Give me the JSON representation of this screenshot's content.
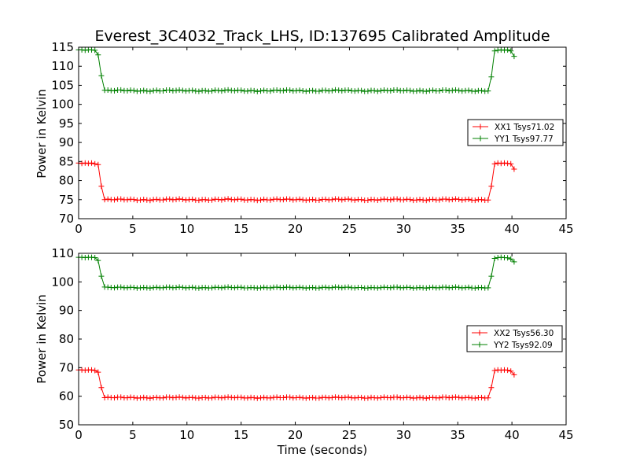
{
  "chart_data": [
    {
      "type": "line",
      "title": "Everest_3C4032_Track_LHS, ID:137695 Calibrated Amplitude",
      "xlabel": "",
      "ylabel": "Power in Kelvin",
      "xlim": [
        0,
        45
      ],
      "ylim": [
        70,
        115
      ],
      "xticks": [
        0,
        5,
        10,
        15,
        20,
        25,
        30,
        35,
        40,
        45
      ],
      "yticks": [
        70,
        75,
        80,
        85,
        90,
        95,
        100,
        105,
        110,
        115
      ],
      "grid": false,
      "legend_position": "right",
      "x": [
        0.0,
        0.3,
        0.6,
        0.9,
        1.2,
        1.5,
        1.8,
        2.1,
        2.4,
        38.1,
        38.4,
        38.7,
        39.0,
        39.3,
        39.6,
        39.9,
        40.2
      ],
      "series": [
        {
          "name": "XX1 Tsys71.02",
          "color": "#ff0000",
          "segments": [
            {
              "x": [
                0.0,
                0.3,
                0.6,
                0.9,
                1.2,
                1.5,
                1.8,
                2.1,
                2.4
              ],
              "y": [
                84.6,
                84.5,
                84.6,
                84.5,
                84.6,
                84.4,
                84.2,
                78.5,
                75.0
              ]
            },
            {
              "x_start": 2.4,
              "x_end": 37.8,
              "step": 0.3,
              "y": 75.0
            },
            {
              "x": [
                37.8,
                38.1,
                38.4,
                38.7,
                39.0,
                39.3,
                39.6,
                39.9,
                40.2
              ],
              "y": [
                75.2,
                78.5,
                84.4,
                84.6,
                84.5,
                84.6,
                84.5,
                84.4,
                83.0
              ]
            }
          ]
        },
        {
          "name": "YY1 Tsys97.77",
          "color": "#008000",
          "segments": [
            {
              "x": [
                0.0,
                0.3,
                0.6,
                0.9,
                1.2,
                1.5,
                1.8,
                2.1,
                2.4
              ],
              "y": [
                114.3,
                114.3,
                114.2,
                114.3,
                114.3,
                114.2,
                113.0,
                107.5,
                103.7
              ]
            },
            {
              "x_start": 2.4,
              "x_end": 37.8,
              "step": 0.3,
              "y": 103.6
            },
            {
              "x": [
                37.8,
                38.1,
                38.4,
                38.7,
                39.0,
                39.3,
                39.6,
                39.9,
                40.2
              ],
              "y": [
                104.0,
                107.2,
                114.0,
                114.2,
                114.3,
                114.2,
                114.3,
                114.0,
                112.6
              ]
            }
          ]
        }
      ]
    },
    {
      "type": "line",
      "title": "",
      "xlabel": "Time (seconds)",
      "ylabel": "Power in Kelvin",
      "xlim": [
        0,
        45
      ],
      "ylim": [
        50,
        110
      ],
      "xticks": [
        0,
        5,
        10,
        15,
        20,
        25,
        30,
        35,
        40,
        45
      ],
      "yticks": [
        50,
        60,
        70,
        80,
        90,
        100,
        110
      ],
      "grid": false,
      "legend_position": "right",
      "series": [
        {
          "name": "XX2 Tsys56.30",
          "color": "#ff0000",
          "segments": [
            {
              "x": [
                0.0,
                0.3,
                0.6,
                0.9,
                1.2,
                1.5,
                1.8,
                2.1,
                2.4
              ],
              "y": [
                69.2,
                69.2,
                69.1,
                69.2,
                69.2,
                69.0,
                68.4,
                63.0,
                59.5
              ]
            },
            {
              "x_start": 2.4,
              "x_end": 37.8,
              "step": 0.3,
              "y": 59.5
            },
            {
              "x": [
                37.8,
                38.1,
                38.4,
                38.7,
                39.0,
                39.3,
                39.6,
                39.9,
                40.2
              ],
              "y": [
                60.0,
                63.0,
                69.0,
                69.2,
                69.1,
                69.2,
                69.1,
                68.8,
                67.5
              ]
            }
          ]
        },
        {
          "name": "YY2 Tsys92.09",
          "color": "#008000",
          "segments": [
            {
              "x": [
                0.0,
                0.3,
                0.6,
                0.9,
                1.2,
                1.5,
                1.8,
                2.1,
                2.4
              ],
              "y": [
                108.6,
                108.6,
                108.5,
                108.6,
                108.6,
                108.5,
                107.5,
                102.0,
                98.2
              ]
            },
            {
              "x_start": 2.4,
              "x_end": 37.8,
              "step": 0.3,
              "y": 98.0
            },
            {
              "x": [
                37.8,
                38.1,
                38.4,
                38.7,
                39.0,
                39.3,
                39.6,
                39.9,
                40.2
              ],
              "y": [
                98.5,
                102.0,
                108.2,
                108.5,
                108.6,
                108.5,
                108.4,
                108.0,
                107.0
              ]
            }
          ]
        }
      ]
    }
  ]
}
